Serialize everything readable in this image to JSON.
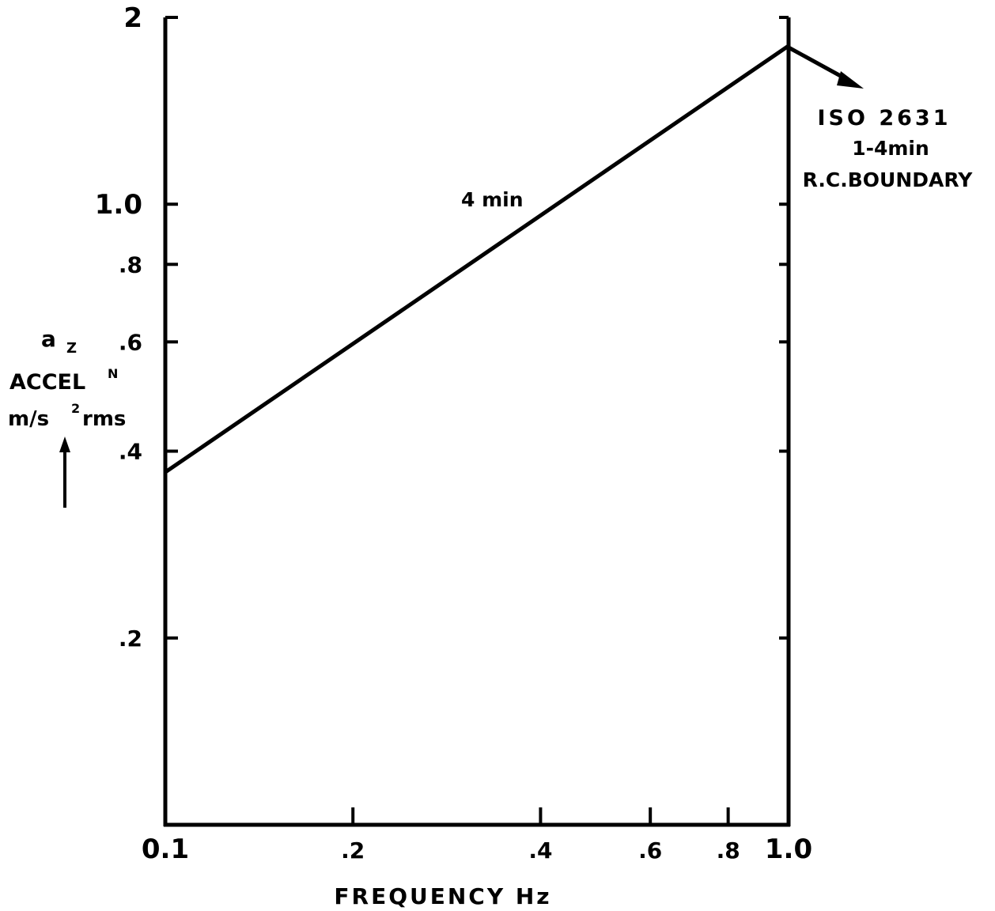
{
  "chart_data": {
    "type": "line",
    "scale": "log-log",
    "x_axis": {
      "label": "FREQUENCY  Hz",
      "range": [
        0.1,
        1.0
      ],
      "ticks": [
        {
          "value": 0.1,
          "label": "0.1"
        },
        {
          "value": 0.2,
          "label": ".2"
        },
        {
          "value": 0.4,
          "label": ".4"
        },
        {
          "value": 0.6,
          "label": ".6"
        },
        {
          "value": 0.8,
          "label": ".8"
        },
        {
          "value": 1.0,
          "label": "1.0"
        }
      ]
    },
    "y_axis": {
      "label_lines": [
        "a",
        "Z",
        "ACCEL",
        "N",
        "m/s",
        "2",
        "rms"
      ],
      "range": [
        0.1,
        2.0
      ],
      "ticks": [
        {
          "value": 2.0,
          "label": "2"
        },
        {
          "value": 1.0,
          "label": "1.0"
        },
        {
          "value": 0.8,
          "label": ".8"
        },
        {
          "value": 0.6,
          "label": ".6"
        },
        {
          "value": 0.4,
          "label": ".4"
        },
        {
          "value": 0.2,
          "label": ".2"
        }
      ]
    },
    "series": [
      {
        "label": "4 min",
        "points": [
          {
            "x": 0.1,
            "y": 0.37
          },
          {
            "x": 1.0,
            "y": 1.8
          }
        ]
      }
    ],
    "annotation": {
      "lines": [
        "ISO 2631",
        "1-4min",
        "R.C.BOUNDARY"
      ]
    },
    "grid": false,
    "legend": "none"
  }
}
